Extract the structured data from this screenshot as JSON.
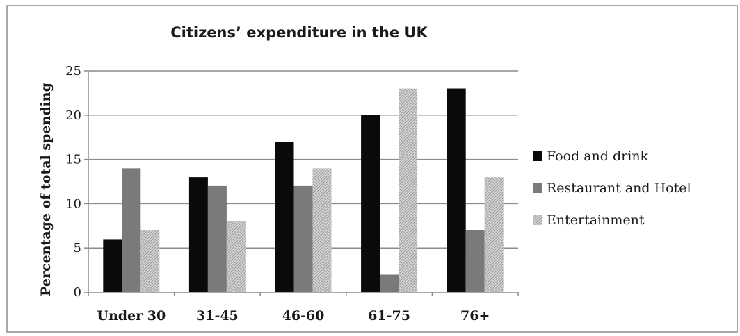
{
  "chart_data": {
    "type": "bar",
    "title": "Citizens’ expenditure in the UK",
    "xlabel": "",
    "ylabel": "Percentage of total spending",
    "ylim": [
      0,
      25
    ],
    "yticks": [
      0,
      5,
      10,
      15,
      20,
      25
    ],
    "grid": true,
    "legend_position": "right",
    "categories": [
      "Under 30",
      "31-45",
      "46-60",
      "61-75",
      "76+"
    ],
    "series": [
      {
        "name": "Food and drink",
        "values": [
          6,
          13,
          17,
          20,
          23
        ],
        "color": "#0a0a0a"
      },
      {
        "name": "Restaurant and Hotel",
        "values": [
          14,
          12,
          12,
          2,
          7
        ],
        "color": "#7a7a7a"
      },
      {
        "name": "Entertainment",
        "values": [
          7,
          8,
          14,
          23,
          13
        ],
        "color": "#c4c4c4"
      }
    ]
  }
}
